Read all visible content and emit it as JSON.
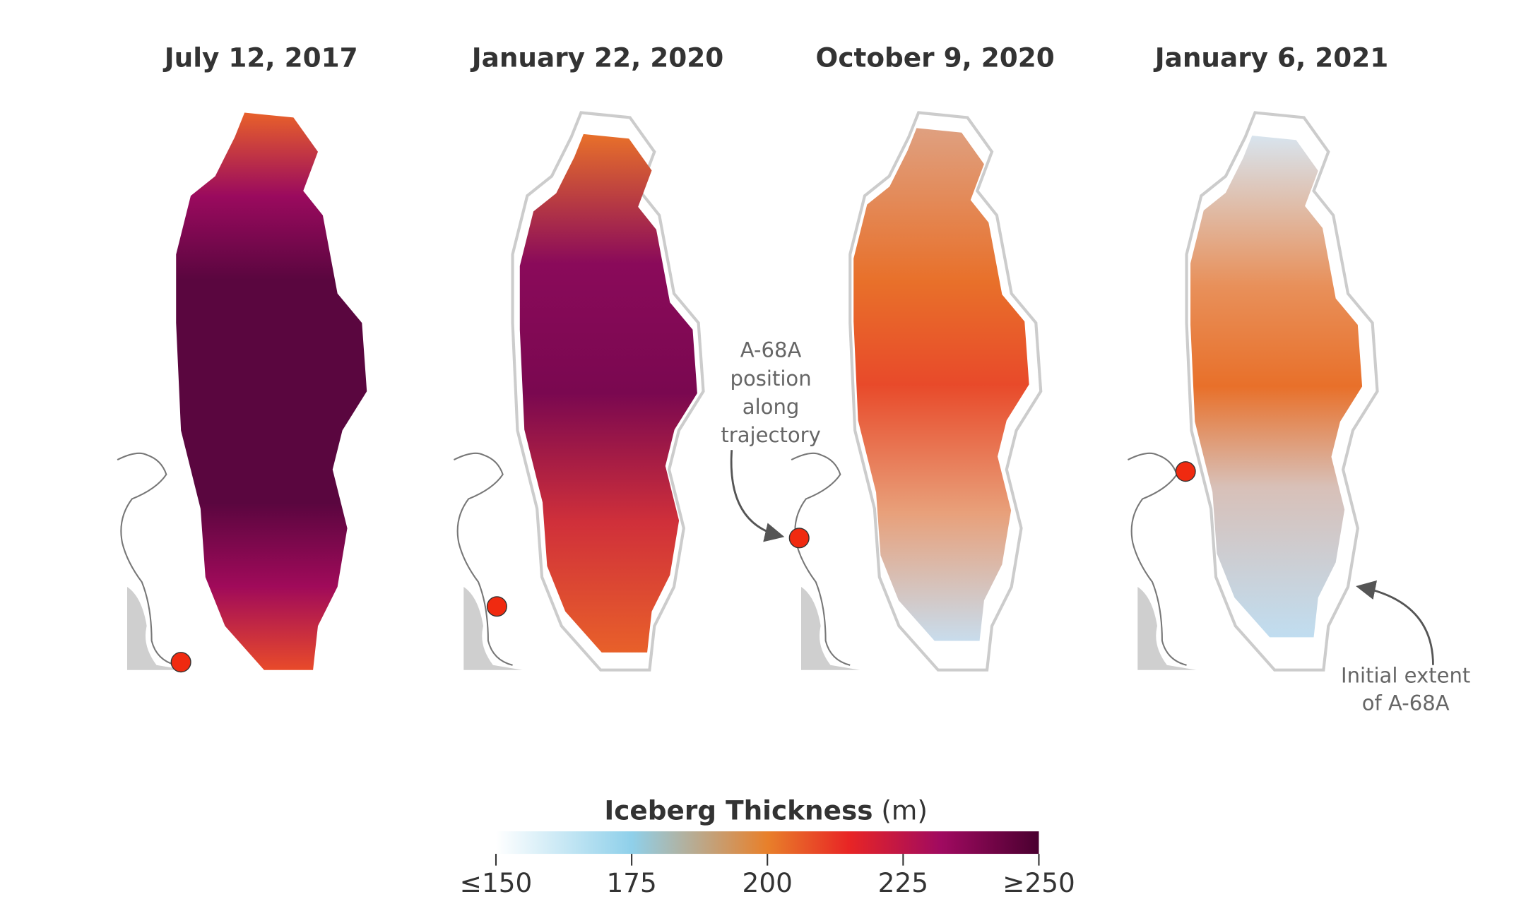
{
  "panels": [
    {
      "title": "July 12, 2017"
    },
    {
      "title": "January 22, 2020"
    },
    {
      "title": "October 9, 2020"
    },
    {
      "title": "January 6, 2021"
    }
  ],
  "annotations": {
    "position": [
      "A-68A",
      "position",
      "along",
      "trajectory"
    ],
    "extent": [
      "Initial extent",
      "of A-68A"
    ]
  },
  "legend": {
    "title": "Iceberg Thickness",
    "unit": "(m)",
    "range": [
      150,
      250
    ],
    "ticks": [
      {
        "value": 150,
        "label": "≤150"
      },
      175,
      200,
      225,
      {
        "value": 250,
        "label": "≥250"
      }
    ]
  }
}
